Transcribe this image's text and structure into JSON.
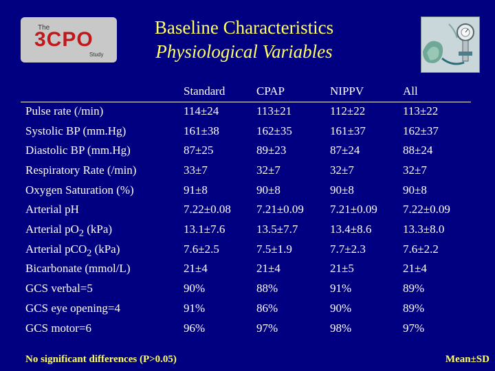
{
  "logo": {
    "small_top": "The",
    "main": "3CPO",
    "small_bottom": "Study"
  },
  "title_line1": "Baseline Characteristics",
  "title_line2": "Physiological Variables",
  "columns": [
    "Standard",
    "CPAP",
    "NIPPV",
    "All"
  ],
  "rows": [
    {
      "label": "Pulse rate (/min)",
      "values": [
        "114±24",
        "113±21",
        "112±22",
        "113±22"
      ]
    },
    {
      "label": "Systolic BP (mm.Hg)",
      "values": [
        "161±38",
        "162±35",
        "161±37",
        "162±37"
      ]
    },
    {
      "label": "Diastolic BP (mm.Hg)",
      "values": [
        "87±25",
        "89±23",
        "87±24",
        "88±24"
      ]
    },
    {
      "label": "Respiratory Rate (/min)",
      "values": [
        "33±7",
        "32±7",
        "32±7",
        "32±7"
      ]
    },
    {
      "label": "Oxygen Saturation (%)",
      "values": [
        "91±8",
        "90±8",
        "90±8",
        "90±8"
      ]
    },
    {
      "label": "Arterial pH",
      "values": [
        "7.22±0.08",
        "7.21±0.09",
        "7.21±0.09",
        "7.22±0.09"
      ]
    },
    {
      "label": "Arterial pO2 (kPa)",
      "label_main": "Arterial pO",
      "label_sub": "2",
      "label_tail": " (kPa)",
      "values": [
        "13.1±7.6",
        "13.5±7.7",
        "13.4±8.6",
        "13.3±8.0"
      ]
    },
    {
      "label": "Arterial pCO2 (kPa)",
      "label_main": "Arterial pCO",
      "label_sub": "2",
      "label_tail": " (kPa)",
      "values": [
        "7.6±2.5",
        "7.5±1.9",
        "7.7±2.3",
        "7.6±2.2"
      ]
    },
    {
      "label": "Bicarbonate (mmol/L)",
      "values": [
        "21±4",
        "21±4",
        "21±5",
        "21±4"
      ]
    },
    {
      "label": "GCS verbal=5",
      "values": [
        "90%",
        "88%",
        "91%",
        "89%"
      ]
    },
    {
      "label": "GCS eye opening=4",
      "values": [
        "91%",
        "86%",
        "90%",
        "89%"
      ]
    },
    {
      "label": "GCS motor=6",
      "values": [
        "96%",
        "97%",
        "98%",
        "97%"
      ]
    }
  ],
  "footer_left": "No significant differences (P>0.05)",
  "footer_right": "Mean±SD",
  "colors": {
    "background": "#000080",
    "title": "#ffff66",
    "text": "#ffffff",
    "logo_red": "#c0181b"
  }
}
